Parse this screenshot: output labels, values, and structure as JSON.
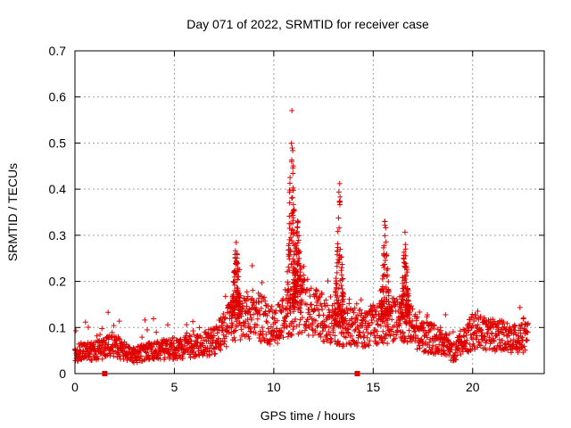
{
  "chart_data": {
    "type": "scatter",
    "title": "Day 071 of 2022, SRMTID for receiver case",
    "xlabel": "GPS time / hours",
    "ylabel": "SRMTID / TECUs",
    "xlim": [
      0,
      23.6
    ],
    "ylim": [
      0,
      0.7
    ],
    "xticks": [
      0,
      5,
      10,
      15,
      20
    ],
    "xtick_labels": [
      "0",
      "5",
      "10",
      "15",
      "20"
    ],
    "yticks": [
      0,
      0.1,
      0.2,
      0.3,
      0.4,
      0.5,
      0.6,
      0.7
    ],
    "ytick_labels": [
      "0",
      "0.1",
      "0.2",
      "0.3",
      "0.4",
      "0.5",
      "0.6",
      "0.7"
    ],
    "grid": true,
    "marker": "+",
    "series_color": "#e00000",
    "baseline": [
      [
        0.0,
        0.045
      ],
      [
        1.0,
        0.05
      ],
      [
        2.0,
        0.06
      ],
      [
        3.0,
        0.04
      ],
      [
        4.0,
        0.05
      ],
      [
        5.0,
        0.055
      ],
      [
        6.0,
        0.06
      ],
      [
        7.0,
        0.07
      ],
      [
        8.0,
        0.12
      ],
      [
        9.0,
        0.13
      ],
      [
        10.0,
        0.1
      ],
      [
        10.8,
        0.14
      ],
      [
        11.5,
        0.15
      ],
      [
        12.5,
        0.12
      ],
      [
        13.5,
        0.1
      ],
      [
        14.5,
        0.1
      ],
      [
        15.5,
        0.11
      ],
      [
        16.5,
        0.12
      ],
      [
        17.5,
        0.08
      ],
      [
        18.5,
        0.07
      ],
      [
        19.0,
        0.045
      ],
      [
        20.0,
        0.09
      ],
      [
        21.0,
        0.085
      ],
      [
        22.0,
        0.075
      ],
      [
        22.8,
        0.08
      ]
    ],
    "peaks": [
      {
        "x": 8.1,
        "y": 0.3
      },
      {
        "x": 10.9,
        "y": 0.6
      },
      {
        "x": 11.2,
        "y": 0.36
      },
      {
        "x": 13.3,
        "y": 0.43
      },
      {
        "x": 15.6,
        "y": 0.36
      },
      {
        "x": 16.6,
        "y": 0.31
      }
    ],
    "data_gaps_hours": [
      1.5,
      14.2
    ]
  }
}
